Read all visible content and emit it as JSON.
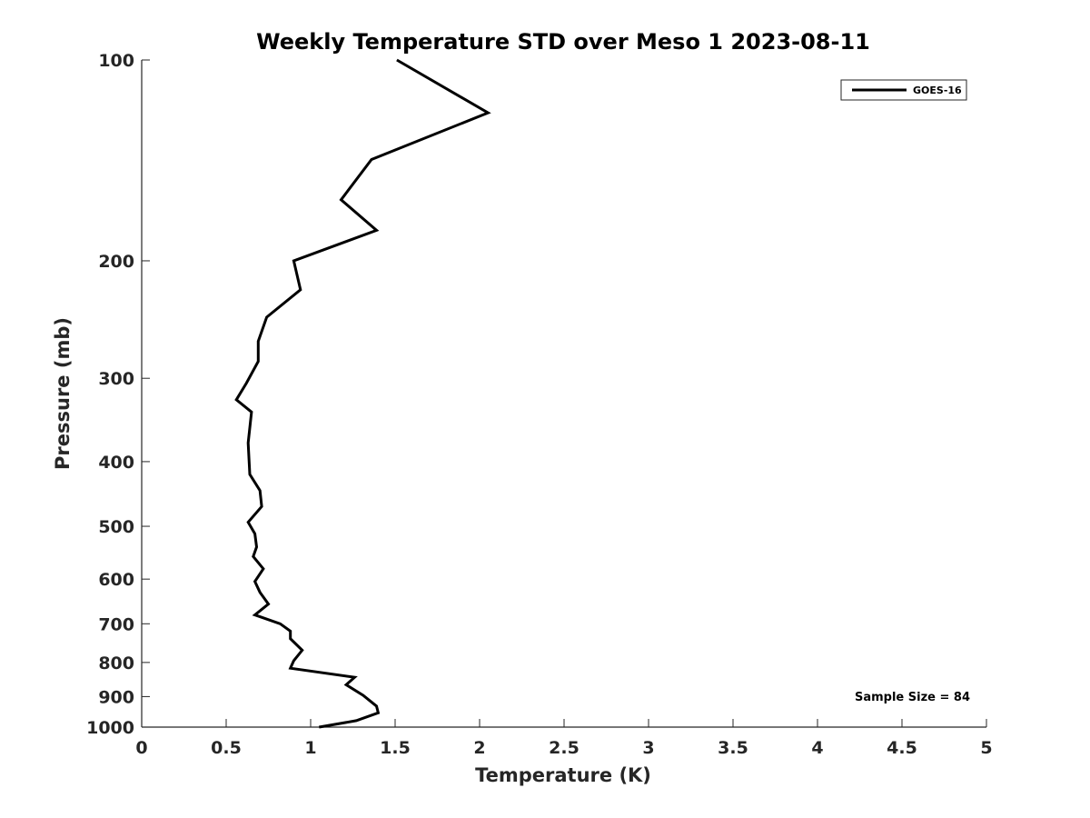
{
  "chart_data": {
    "type": "line",
    "title": "Weekly Temperature STD over Meso 1 2023-08-11",
    "xlabel": "Temperature (K)",
    "ylabel": "Pressure (mb)",
    "xlim": [
      0,
      5
    ],
    "ylim": [
      1000,
      100
    ],
    "y_scale": "log",
    "grid": false,
    "x_ticks": [
      "0",
      "0.5",
      "1",
      "1.5",
      "2",
      "2.5",
      "3",
      "3.5",
      "4",
      "4.5",
      "5"
    ],
    "y_ticks": [
      "100",
      "200",
      "300",
      "400",
      "500",
      "600",
      "700",
      "800",
      "900",
      "1000"
    ],
    "legend_position": "top-right",
    "annotation": "Sample Size = 84",
    "series": [
      {
        "name": "GOES-16",
        "color": "#000000",
        "x": [
          1.51,
          2.05,
          1.36,
          1.18,
          1.39,
          0.9,
          0.94,
          0.74,
          0.69,
          0.69,
          0.62,
          0.56,
          0.65,
          0.63,
          0.64,
          0.7,
          0.71,
          0.63,
          0.67,
          0.68,
          0.66,
          0.72,
          0.67,
          0.7,
          0.75,
          0.67,
          0.82,
          0.88,
          0.88,
          0.95,
          0.9,
          0.88,
          1.26,
          1.21,
          1.31,
          1.39,
          1.4,
          1.27,
          1.05
        ],
        "y": [
          100,
          120,
          141,
          162,
          180,
          200,
          221,
          243,
          264,
          283,
          305,
          323,
          337,
          375,
          418,
          442,
          467,
          493,
          513,
          537,
          555,
          579,
          605,
          628,
          654,
          679,
          700,
          718,
          737,
          767,
          795,
          816,
          842,
          864,
          896,
          930,
          952,
          978,
          1000
        ]
      }
    ]
  }
}
